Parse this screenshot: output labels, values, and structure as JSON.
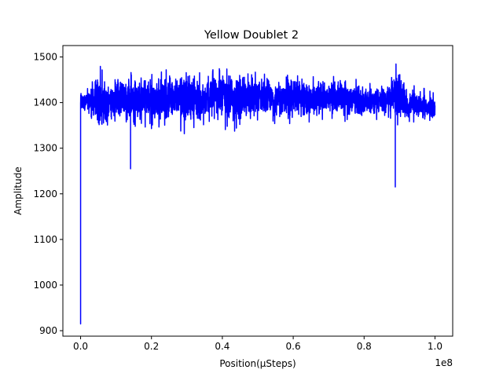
{
  "chart_data": {
    "type": "line",
    "title": "Yellow Doublet 2",
    "xlabel": "Position(µSteps)",
    "ylabel": "Amplitude",
    "x_offset_label": "1e8",
    "xlim": [
      -0.05,
      1.05
    ],
    "ylim": [
      888,
      1525
    ],
    "x_ticks": [
      0.0,
      0.2,
      0.4,
      0.6,
      0.8,
      1.0
    ],
    "x_tick_labels": [
      "0.0",
      "0.2",
      "0.4",
      "0.6",
      "0.8",
      "1.0"
    ],
    "y_ticks": [
      900,
      1000,
      1100,
      1200,
      1300,
      1400,
      1500
    ],
    "y_tick_labels": [
      "900",
      "1000",
      "1100",
      "1200",
      "1300",
      "1400",
      "1500"
    ],
    "grid": false,
    "series": [
      {
        "color": "#0000ff",
        "envelope_x": [
          0.0,
          0.02,
          0.05,
          0.08,
          0.11,
          0.14,
          0.17,
          0.2,
          0.23,
          0.26,
          0.29,
          0.32,
          0.35,
          0.38,
          0.41,
          0.44,
          0.47,
          0.5,
          0.53,
          0.56,
          0.59,
          0.62,
          0.65,
          0.68,
          0.71,
          0.74,
          0.77,
          0.8,
          0.83,
          0.86,
          0.89,
          0.92,
          0.95,
          0.98,
          1.0
        ],
        "envelope_max": [
          1438,
          1435,
          1488,
          1450,
          1488,
          1478,
          1468,
          1472,
          1480,
          1478,
          1488,
          1475,
          1460,
          1502,
          1480,
          1470,
          1485,
          1478,
          1468,
          1462,
          1468,
          1465,
          1458,
          1465,
          1460,
          1462,
          1455,
          1450,
          1450,
          1440,
          1505,
          1430,
          1440,
          1428,
          1425
        ],
        "envelope_min": [
          1360,
          1370,
          1320,
          1350,
          1335,
          1340,
          1350,
          1330,
          1340,
          1350,
          1330,
          1345,
          1340,
          1345,
          1340,
          1335,
          1328,
          1345,
          1350,
          1345,
          1352,
          1355,
          1352,
          1358,
          1355,
          1358,
          1360,
          1360,
          1362,
          1365,
          1350,
          1355,
          1355,
          1350,
          1348
        ],
        "spikes": [
          {
            "x": 0.0,
            "y": 915
          },
          {
            "x": 0.141,
            "y": 1255
          },
          {
            "x": 0.888,
            "y": 1215
          }
        ]
      }
    ]
  }
}
